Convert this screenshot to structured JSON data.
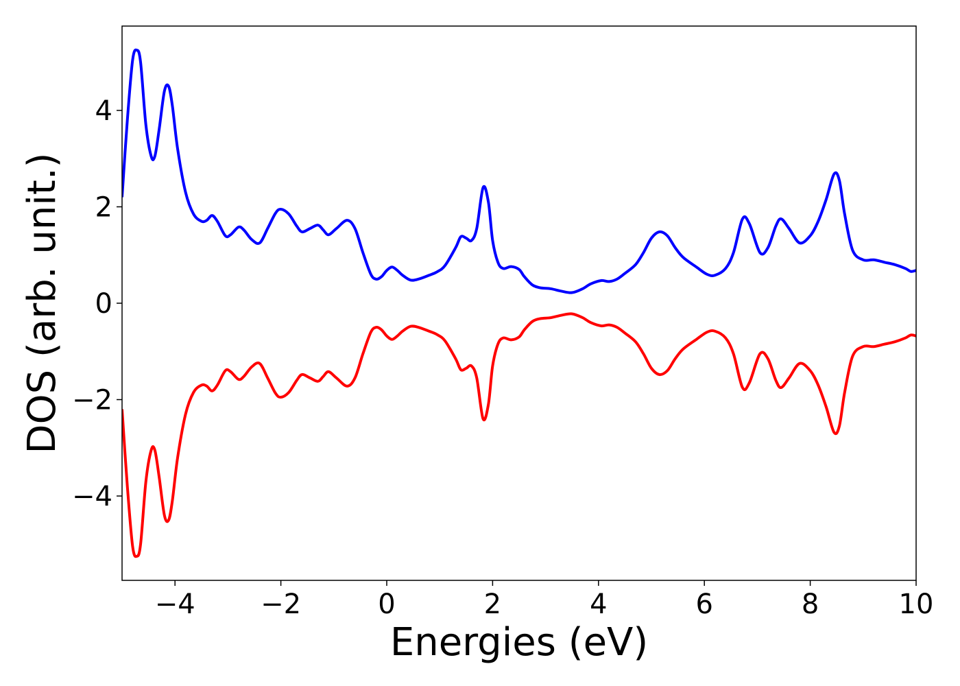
{
  "chart_data": {
    "type": "line",
    "title": "",
    "xlabel": "Energies (eV)",
    "ylabel": "DOS (arb. unit.)",
    "xlim": [
      -5,
      10
    ],
    "ylim": [
      -5.75,
      5.75
    ],
    "xticks": [
      -4,
      -2,
      0,
      2,
      4,
      6,
      8,
      10
    ],
    "xtick_labels": [
      "−4",
      "−2",
      "0",
      "2",
      "4",
      "6",
      "8",
      "10"
    ],
    "yticks": [
      -4,
      -2,
      0,
      2,
      4
    ],
    "ytick_labels": [
      "−4",
      "−2",
      "0",
      "2",
      "4"
    ],
    "grid": false,
    "legend": "none",
    "series": [
      {
        "color": "#0000ff",
        "x": [
          -5.0,
          -4.9,
          -4.8,
          -4.72,
          -4.65,
          -4.55,
          -4.45,
          -4.38,
          -4.3,
          -4.2,
          -4.12,
          -4.05,
          -3.95,
          -3.8,
          -3.65,
          -3.5,
          -3.4,
          -3.3,
          -3.2,
          -3.05,
          -2.95,
          -2.8,
          -2.7,
          -2.55,
          -2.4,
          -2.25,
          -2.1,
          -2.0,
          -1.85,
          -1.7,
          -1.6,
          -1.45,
          -1.3,
          -1.2,
          -1.1,
          -0.95,
          -0.75,
          -0.6,
          -0.45,
          -0.3,
          -0.2,
          -0.1,
          0.0,
          0.1,
          0.2,
          0.3,
          0.45,
          0.6,
          0.8,
          0.95,
          1.1,
          1.3,
          1.4,
          1.5,
          1.6,
          1.7,
          1.82,
          1.92,
          2.0,
          2.1,
          2.2,
          2.35,
          2.5,
          2.6,
          2.75,
          2.9,
          3.1,
          3.3,
          3.5,
          3.7,
          3.85,
          4.05,
          4.2,
          4.35,
          4.5,
          4.7,
          4.85,
          5.0,
          5.15,
          5.3,
          5.45,
          5.6,
          5.85,
          6.05,
          6.2,
          6.4,
          6.55,
          6.72,
          6.85,
          7.05,
          7.2,
          7.35,
          7.45,
          7.6,
          7.8,
          8.0,
          8.15,
          8.3,
          8.45,
          8.55,
          8.65,
          8.8,
          9.0,
          9.2,
          9.4,
          9.6,
          9.8,
          9.9,
          10.0
        ],
        "y": [
          2.2,
          3.8,
          5.05,
          5.25,
          5.0,
          3.7,
          3.05,
          3.05,
          3.6,
          4.4,
          4.5,
          4.1,
          3.2,
          2.3,
          1.85,
          1.7,
          1.72,
          1.82,
          1.7,
          1.4,
          1.42,
          1.58,
          1.52,
          1.32,
          1.25,
          1.55,
          1.87,
          1.95,
          1.85,
          1.6,
          1.48,
          1.55,
          1.62,
          1.52,
          1.42,
          1.55,
          1.72,
          1.55,
          1.05,
          0.6,
          0.5,
          0.55,
          0.68,
          0.75,
          0.68,
          0.58,
          0.48,
          0.5,
          0.58,
          0.65,
          0.78,
          1.15,
          1.38,
          1.35,
          1.3,
          1.55,
          2.4,
          2.1,
          1.3,
          0.85,
          0.72,
          0.76,
          0.7,
          0.55,
          0.38,
          0.32,
          0.3,
          0.25,
          0.22,
          0.3,
          0.4,
          0.47,
          0.45,
          0.5,
          0.62,
          0.8,
          1.05,
          1.35,
          1.48,
          1.4,
          1.15,
          0.95,
          0.75,
          0.6,
          0.58,
          0.72,
          1.05,
          1.75,
          1.65,
          1.05,
          1.15,
          1.6,
          1.75,
          1.55,
          1.25,
          1.4,
          1.7,
          2.15,
          2.68,
          2.55,
          1.85,
          1.1,
          0.9,
          0.9,
          0.85,
          0.8,
          0.72,
          0.66,
          0.68
        ]
      },
      {
        "color": "#ff0000",
        "x": [
          -5.0,
          -4.9,
          -4.8,
          -4.72,
          -4.65,
          -4.55,
          -4.45,
          -4.38,
          -4.3,
          -4.2,
          -4.12,
          -4.05,
          -3.95,
          -3.8,
          -3.65,
          -3.5,
          -3.4,
          -3.3,
          -3.2,
          -3.05,
          -2.95,
          -2.8,
          -2.7,
          -2.55,
          -2.4,
          -2.25,
          -2.1,
          -2.0,
          -1.85,
          -1.7,
          -1.6,
          -1.45,
          -1.3,
          -1.2,
          -1.1,
          -0.95,
          -0.75,
          -0.6,
          -0.45,
          -0.3,
          -0.2,
          -0.1,
          0.0,
          0.1,
          0.2,
          0.3,
          0.45,
          0.6,
          0.8,
          0.95,
          1.1,
          1.3,
          1.4,
          1.5,
          1.6,
          1.7,
          1.82,
          1.92,
          2.0,
          2.1,
          2.2,
          2.35,
          2.5,
          2.6,
          2.75,
          2.9,
          3.1,
          3.3,
          3.5,
          3.7,
          3.85,
          4.05,
          4.2,
          4.35,
          4.5,
          4.7,
          4.85,
          5.0,
          5.15,
          5.3,
          5.45,
          5.6,
          5.85,
          6.05,
          6.2,
          6.4,
          6.55,
          6.72,
          6.85,
          7.05,
          7.2,
          7.35,
          7.45,
          7.6,
          7.8,
          8.0,
          8.15,
          8.3,
          8.45,
          8.55,
          8.65,
          8.8,
          9.0,
          9.2,
          9.4,
          9.6,
          9.8,
          9.9,
          10.0
        ],
        "y": [
          -2.2,
          -3.8,
          -5.05,
          -5.25,
          -5.0,
          -3.7,
          -3.05,
          -3.05,
          -3.6,
          -4.4,
          -4.5,
          -4.1,
          -3.2,
          -2.3,
          -1.85,
          -1.7,
          -1.72,
          -1.82,
          -1.7,
          -1.4,
          -1.42,
          -1.58,
          -1.52,
          -1.32,
          -1.25,
          -1.55,
          -1.87,
          -1.95,
          -1.85,
          -1.6,
          -1.48,
          -1.55,
          -1.62,
          -1.52,
          -1.42,
          -1.55,
          -1.72,
          -1.55,
          -1.05,
          -0.6,
          -0.5,
          -0.55,
          -0.68,
          -0.75,
          -0.68,
          -0.58,
          -0.48,
          -0.5,
          -0.58,
          -0.65,
          -0.78,
          -1.15,
          -1.38,
          -1.35,
          -1.3,
          -1.55,
          -2.4,
          -2.1,
          -1.3,
          -0.85,
          -0.72,
          -0.76,
          -0.7,
          -0.55,
          -0.38,
          -0.32,
          -0.3,
          -0.25,
          -0.22,
          -0.3,
          -0.4,
          -0.47,
          -0.45,
          -0.5,
          -0.62,
          -0.8,
          -1.05,
          -1.35,
          -1.48,
          -1.4,
          -1.15,
          -0.95,
          -0.75,
          -0.6,
          -0.58,
          -0.72,
          -1.05,
          -1.75,
          -1.65,
          -1.05,
          -1.15,
          -1.6,
          -1.75,
          -1.55,
          -1.25,
          -1.4,
          -1.7,
          -2.15,
          -2.68,
          -2.55,
          -1.85,
          -1.1,
          -0.9,
          -0.9,
          -0.85,
          -0.8,
          -0.72,
          -0.66,
          -0.68
        ]
      }
    ]
  }
}
